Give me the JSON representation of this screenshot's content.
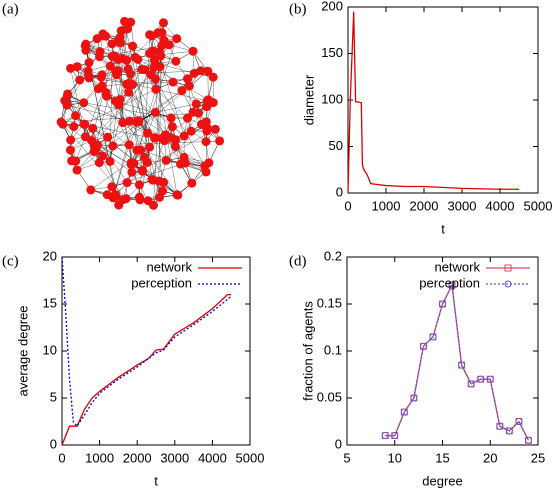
{
  "chart_data": [
    {
      "type": "network",
      "label": "(a)"
    },
    {
      "type": "line",
      "label": "(b)",
      "xlabel": "t",
      "ylabel": "diameter",
      "color": "#dd0000",
      "x": [
        0,
        60,
        150,
        200,
        250,
        350,
        380,
        420,
        500,
        600,
        800,
        1000,
        1500,
        2000,
        3000,
        4000,
        4500
      ],
      "values": [
        0,
        100,
        195,
        98,
        98,
        97,
        30,
        25,
        20,
        10,
        9,
        8,
        7,
        7,
        5,
        4,
        4
      ],
      "xlim": [
        0,
        5000
      ],
      "xticks": [
        0,
        1000,
        2000,
        3000,
        4000,
        5000
      ],
      "ylim": [
        0,
        200
      ],
      "yticks": [
        0,
        50,
        100,
        150,
        200
      ]
    },
    {
      "type": "line",
      "label": "(c)",
      "xlabel": "t",
      "ylabel": "average degree",
      "legend": "upper right",
      "series": [
        {
          "name": "network",
          "color": "#dd0000",
          "dash": "solid",
          "x": [
            0,
            200,
            400,
            600,
            800,
            1000,
            1500,
            2000,
            2300,
            2500,
            2700,
            3000,
            3500,
            4000,
            4400,
            4500
          ],
          "values": [
            0,
            2,
            2,
            3.8,
            5,
            5.7,
            7.2,
            8.5,
            9.2,
            10.1,
            10.2,
            11.8,
            13,
            14.5,
            16,
            16
          ]
        },
        {
          "name": "perception",
          "color": "#0000cc",
          "dash": "dotted",
          "x": [
            0,
            100,
            200,
            300,
            400,
            600,
            800,
            1000,
            1500,
            2000,
            2500,
            2700,
            3000,
            3500,
            4000,
            4500
          ],
          "values": [
            20,
            14,
            7,
            2.5,
            2,
            3.2,
            4.5,
            5.5,
            7,
            8.3,
            9.8,
            10.1,
            11.5,
            12.8,
            14.2,
            15.8
          ]
        }
      ],
      "xlim": [
        0,
        5000
      ],
      "xticks": [
        0,
        1000,
        2000,
        3000,
        4000,
        5000
      ],
      "ylim": [
        0,
        20
      ],
      "yticks": [
        0,
        5,
        10,
        15,
        20
      ]
    },
    {
      "type": "line",
      "label": "(d)",
      "xlabel": "degree",
      "ylabel": "fraction of agents",
      "legend": "upper right",
      "x": [
        9,
        10,
        11,
        12,
        13,
        14,
        15,
        16,
        17,
        18,
        19,
        20,
        21,
        22,
        23,
        24
      ],
      "series": [
        {
          "name": "network",
          "color": "#dd4466",
          "dash": "solid",
          "marker": "square",
          "values": [
            0.01,
            0.01,
            0.035,
            0.05,
            0.105,
            0.115,
            0.15,
            0.17,
            0.085,
            0.065,
            0.07,
            0.07,
            0.02,
            0.015,
            0.025,
            0.005
          ]
        },
        {
          "name": "perception",
          "color": "#5555dd",
          "dash": "dotted",
          "marker": "circle",
          "values": [
            0.01,
            0.01,
            0.035,
            0.05,
            0.105,
            0.115,
            0.15,
            0.17,
            0.085,
            0.065,
            0.07,
            0.07,
            0.02,
            0.015,
            0.025,
            0.005
          ]
        }
      ],
      "xlim": [
        5,
        25
      ],
      "xticks": [
        5,
        10,
        15,
        20,
        25
      ],
      "ylim": [
        0,
        0.2
      ],
      "yticks": [
        0,
        0.05,
        0.1,
        0.15,
        0.2
      ]
    }
  ]
}
